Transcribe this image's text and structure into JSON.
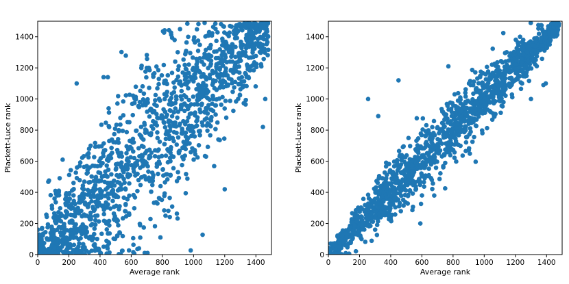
{
  "chart_data": [
    {
      "type": "scatter",
      "xlabel": "Average rank",
      "ylabel": "Plackett-Luce rank",
      "xlim": [
        0,
        1500
      ],
      "ylim": [
        0,
        1500
      ],
      "xticks": [
        0,
        200,
        400,
        600,
        800,
        1000,
        1200,
        1400
      ],
      "yticks": [
        0,
        200,
        400,
        600,
        800,
        1000,
        1200,
        1400
      ],
      "grid": false,
      "color": "#1f77b4",
      "n_points": 1500,
      "spread": "wide",
      "points": [
        [
          68,
          468
        ],
        [
          450,
          1140
        ],
        [
          1200,
          420
        ],
        [
          1445,
          820
        ],
        [
          1460,
          1000
        ],
        [
          700,
          1200
        ],
        [
          340,
          700
        ],
        [
          160,
          610
        ],
        [
          1250,
          1350
        ],
        [
          250,
          1100
        ],
        [
          360,
          60
        ],
        [
          650,
          40
        ],
        [
          820,
          250
        ],
        [
          520,
          800
        ],
        [
          950,
          1300
        ],
        [
          1100,
          1430
        ],
        [
          130,
          100
        ],
        [
          300,
          150
        ],
        [
          440,
          200
        ],
        [
          900,
          530
        ],
        [
          1080,
          630
        ],
        [
          1210,
          880
        ]
      ]
    },
    {
      "type": "scatter",
      "xlabel": "Average rank",
      "ylabel": "Plackett-Luce rank",
      "xlim": [
        0,
        1500
      ],
      "ylim": [
        0,
        1500
      ],
      "xticks": [
        0,
        200,
        400,
        600,
        800,
        1000,
        1200,
        1400
      ],
      "yticks": [
        0,
        200,
        400,
        600,
        800,
        1000,
        1200,
        1400
      ],
      "grid": false,
      "color": "#1f77b4",
      "n_points": 1500,
      "spread": "narrow",
      "points": [
        [
          320,
          890
        ],
        [
          770,
          1210
        ],
        [
          1380,
          1090
        ],
        [
          1395,
          1100
        ],
        [
          300,
          160
        ],
        [
          110,
          60
        ],
        [
          590,
          200
        ],
        [
          1300,
          1000
        ],
        [
          1230,
          1400
        ],
        [
          1460,
          1480
        ],
        [
          450,
          1120
        ],
        [
          255,
          1000
        ]
      ]
    }
  ]
}
